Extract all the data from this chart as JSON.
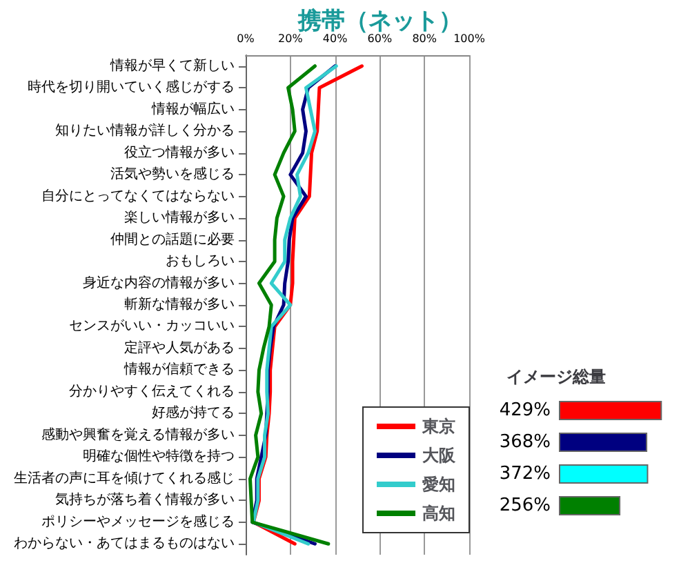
{
  "chart_data": [
    {
      "type": "line",
      "orientation": "horizontal",
      "title": "携帯（ネット）",
      "categories": [
        "情報が早くて新しい",
        "時代を切り開いていく感じがする",
        "情報が幅広い",
        "知りたい情報が詳しく分かる",
        "役立つ情報が多い",
        "活気や勢いを感じる",
        "自分にとってなくてはならない",
        "楽しい情報が多い",
        "仲間との話題に必要",
        "おもしろい",
        "身近な内容の情報が多い",
        "斬新な情報が多い",
        "センスがいい・カッコいい",
        "定評や人気がある",
        "情報が信頼できる",
        "分かりやすく伝えてくれる",
        "好感が持てる",
        "感動や興奮を覚える情報が多い",
        "明確な個性や特徴を持つ",
        "生活者の声に耳を傾けてくれる感じ",
        "気持ちが落ち着く情報が多い",
        "ポリシーやメッセージを感じる",
        "わからない・あてはまるものはない"
      ],
      "series": [
        {
          "name": "東京",
          "color": "#ff0000",
          "values": [
            52,
            33,
            32.5,
            32,
            29.5,
            29,
            28.5,
            22,
            21.5,
            21,
            21,
            20,
            13,
            12,
            11,
            11,
            10.5,
            9.5,
            9,
            6,
            6,
            3.5,
            22
          ]
        },
        {
          "name": "大阪",
          "color": "#000080",
          "values": [
            40,
            28,
            25.5,
            27,
            25.5,
            20,
            27,
            21,
            19.5,
            19,
            17.5,
            17,
            12.5,
            11,
            10,
            10,
            9.5,
            9,
            7,
            5,
            5,
            3,
            31
          ]
        },
        {
          "name": "愛知",
          "color": "#33cccc",
          "values": [
            40.5,
            27,
            29,
            31,
            28,
            23,
            24.5,
            20,
            17.5,
            17.5,
            11.5,
            20,
            11.5,
            10.5,
            9.5,
            9.5,
            10,
            8.5,
            8.5,
            5.5,
            5.5,
            3.5,
            28
          ]
        },
        {
          "name": "高知",
          "color": "#008000",
          "values": [
            31,
            19,
            21,
            22,
            17,
            13,
            17,
            14,
            13,
            13,
            6,
            11.5,
            10.5,
            8,
            6,
            5.5,
            7,
            4.5,
            5.5,
            2,
            2.5,
            3,
            37
          ]
        }
      ],
      "xlim": [
        0,
        100
      ],
      "xticks": [
        {
          "value": 0,
          "label": "0%"
        },
        {
          "value": 20,
          "label": "20%"
        },
        {
          "value": 40,
          "label": "40%"
        },
        {
          "value": 60,
          "label": "60%"
        },
        {
          "value": 80,
          "label": "80%"
        },
        {
          "value": 100,
          "label": "100%"
        }
      ],
      "grid": "x",
      "legend": "bottom right",
      "marker": "none",
      "line_style": "solid"
    },
    {
      "type": "bar",
      "orientation": "horizontal",
      "title": "イメージ総量",
      "categories": [
        null,
        null,
        null,
        null
      ],
      "values": [
        429,
        368,
        372,
        256
      ],
      "colors": [
        "#ff0000",
        "#000080",
        "#00ffff",
        "#008000"
      ],
      "value_labels": [
        "429%",
        "368%",
        "372%",
        "256%"
      ]
    }
  ]
}
